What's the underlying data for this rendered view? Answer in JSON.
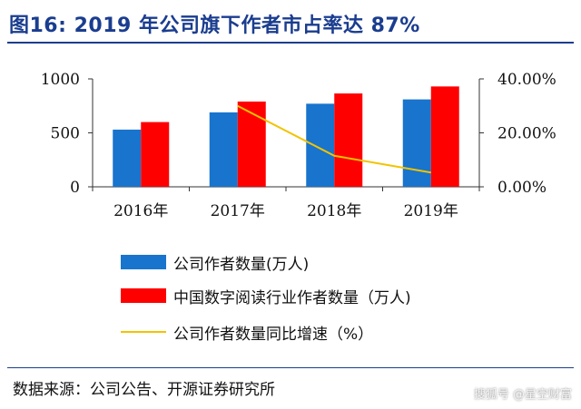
{
  "title": "图16:  2019 年公司旗下作者市占率达 87%",
  "chart_data": {
    "type": "bar",
    "categories": [
      "2016年",
      "2017年",
      "2018年",
      "2019年"
    ],
    "series": [
      {
        "name": "公司作者数量(万人)",
        "type": "bar",
        "axis": "left",
        "color": "#1874cd",
        "values": [
          530,
          690,
          770,
          810
        ]
      },
      {
        "name": "中国数字阅读行业作者数量（万人)",
        "type": "bar",
        "axis": "left",
        "color": "#ff0000",
        "values": [
          600,
          790,
          865,
          930
        ]
      },
      {
        "name": "公司作者数量同比增速（%）",
        "type": "line",
        "axis": "right",
        "color": "#f2c300",
        "values": [
          null,
          30.0,
          11.5,
          5.3
        ]
      }
    ],
    "y_left": {
      "min": 0,
      "max": 1000,
      "ticks": [
        0,
        500,
        1000
      ],
      "tick_labels": [
        "0",
        "500",
        "1000"
      ]
    },
    "y_right": {
      "min": 0,
      "max": 40,
      "ticks": [
        0,
        20,
        40
      ],
      "tick_labels": [
        "0.00%",
        "20.00%",
        "40.00%"
      ]
    },
    "grid": false,
    "legend_position": "bottom"
  },
  "source": "数据来源：公司公告、开源证券研究所",
  "watermark": "搜狐号 @星空财富"
}
